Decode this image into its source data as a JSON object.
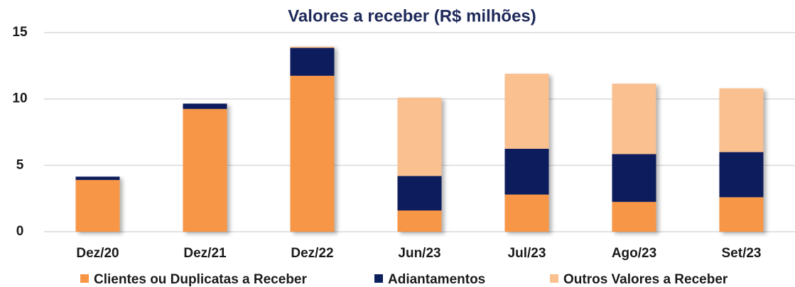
{
  "chart_data": {
    "type": "stacked_bar",
    "title": "Valores a receber (R$ milhões)",
    "categories": [
      "Dez/20",
      "Dez/21",
      "Dez/22",
      "Jun/23",
      "Jul/23",
      "Ago/23",
      "Set/23"
    ],
    "series": [
      {
        "name": "Clientes ou Duplicatas a Receber",
        "color": "#f79646",
        "values": [
          3.9,
          9.25,
          11.75,
          1.6,
          2.8,
          2.25,
          2.6
        ]
      },
      {
        "name": "Adiantamentos",
        "color": "#0b1f5c",
        "values": [
          0.25,
          0.4,
          2.1,
          2.6,
          3.45,
          3.6,
          3.4
        ]
      },
      {
        "name": "Outros Valores a Receber",
        "color": "#fac090",
        "values": [
          0,
          0,
          0.1,
          5.9,
          5.65,
          5.3,
          4.8
        ]
      }
    ],
    "ylim": [
      0,
      15
    ],
    "yticks": [
      0,
      5,
      10,
      15
    ],
    "grid": true,
    "legend": "bottom"
  }
}
